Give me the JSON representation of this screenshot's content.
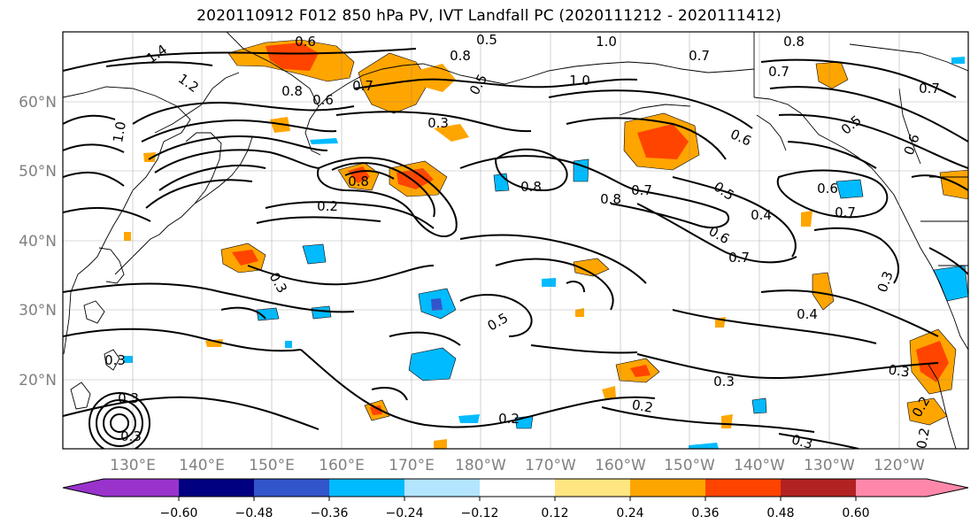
{
  "title": "2020110912 F012 850 hPa PV, IVT Landfall PC (2020111212 - 2020111412)",
  "lat_labels": [
    "60°N",
    "50°N",
    "40°N",
    "30°N",
    "20°N"
  ],
  "lon_labels": [
    "130°E",
    "140°E",
    "150°E",
    "160°E",
    "170°E",
    "180°W",
    "170°W",
    "160°W",
    "150°W",
    "140°W",
    "130°W",
    "120°W"
  ],
  "colorbar": {
    "colors": [
      "#9933cc",
      "#000080",
      "#3355cc",
      "#00bbff",
      "#b3e5ff",
      "#ffffff",
      "#ffe680",
      "#ffa500",
      "#ff4400",
      "#b22222",
      "#ff88aa"
    ],
    "tick_labels": [
      "−0.60",
      "−0.48",
      "−0.36",
      "−0.24",
      "−0.12",
      "0.12",
      "0.24",
      "0.36",
      "0.48",
      "0.60"
    ]
  },
  "contour_labels": [
    "0.6",
    "0.5",
    "1.0",
    "0.7",
    "0.8",
    "1.4",
    "1.2",
    "1.0",
    "0.8",
    "0.7",
    "0.3",
    "0.8",
    "0.6",
    "0.8",
    "0.2",
    "0.8",
    "0.8",
    "0.7",
    "0.5",
    "0.6",
    "0.4",
    "0.6",
    "0.7",
    "0.6",
    "0.7",
    "0.5",
    "0.6",
    "0.3",
    "0.5",
    "0.4",
    "0.3",
    "0.3",
    "0.2",
    "0.3",
    "0.2",
    "0.3",
    "0.2",
    "0.3",
    "0.3",
    "0.2",
    "0.3",
    "1.0",
    "0.7",
    "0.5",
    "0.7"
  ]
}
